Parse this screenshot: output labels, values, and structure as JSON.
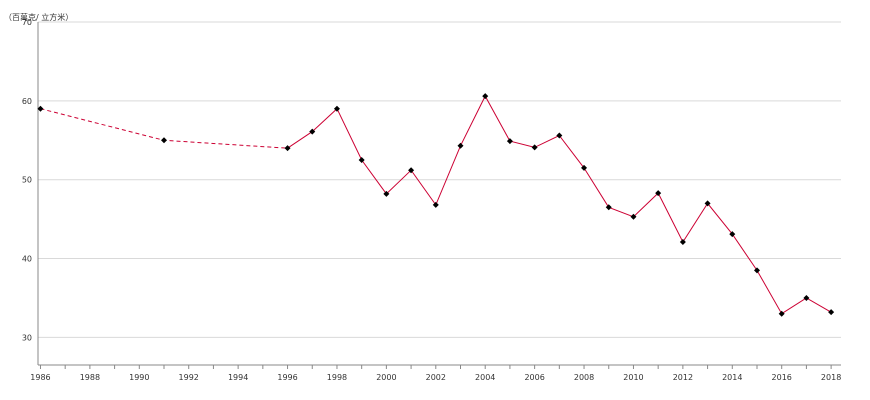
{
  "chart_data": {
    "type": "line",
    "unit_label": "（百萬克/ 立方米）",
    "x_ticks": [
      1986,
      1988,
      1990,
      1992,
      1994,
      1996,
      1998,
      2000,
      2002,
      2004,
      2006,
      2008,
      2010,
      2012,
      2014,
      2016,
      2018
    ],
    "y_ticks": [
      30,
      40,
      50,
      60,
      70
    ],
    "xlim": [
      1985.9,
      2018.4
    ],
    "ylim": [
      26.5,
      70
    ],
    "grid": true,
    "colors": {
      "line": "#cc0033",
      "marker": "#000000",
      "grid": "#d9d9d9",
      "axis": "#888888"
    },
    "series": [
      {
        "style": "dashed",
        "points": [
          [
            1986,
            59.0
          ],
          [
            1991,
            55.0
          ],
          [
            1996,
            54.0
          ]
        ]
      },
      {
        "style": "solid",
        "points": [
          [
            1996,
            54.0
          ],
          [
            1997,
            56.1
          ],
          [
            1998,
            59.0
          ],
          [
            1999,
            52.5
          ],
          [
            2000,
            48.2
          ],
          [
            2001,
            51.2
          ],
          [
            2002,
            46.8
          ],
          [
            2003,
            54.3
          ],
          [
            2004,
            60.6
          ],
          [
            2005,
            54.9
          ],
          [
            2006,
            54.1
          ],
          [
            2007,
            55.6
          ],
          [
            2008,
            51.5
          ],
          [
            2009,
            46.5
          ],
          [
            2010,
            45.3
          ],
          [
            2011,
            48.3
          ],
          [
            2012,
            42.1
          ],
          [
            2013,
            47.0
          ],
          [
            2014,
            43.1
          ],
          [
            2015,
            38.5
          ],
          [
            2016,
            33.0
          ],
          [
            2017,
            35.0
          ],
          [
            2018,
            33.2
          ]
        ]
      }
    ]
  }
}
